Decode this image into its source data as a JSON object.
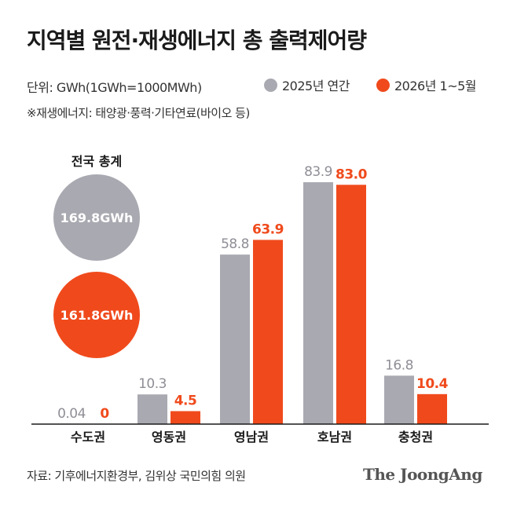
{
  "colors": {
    "gray": "#a9a9b1",
    "orange": "#f04a1c",
    "dark": "#1a1a1a"
  },
  "header": {
    "title": "지역별 원전·재생에너지 총 출력제어량",
    "unit": "단위: GWh(1GWh=1000MWh)",
    "note": "※재생에너지: 태양광·풍력·기타연료(바이오 등)"
  },
  "legend": {
    "gray": "2025년 연간",
    "orange": "2026년 1~5월"
  },
  "totals": {
    "title": "전국 총계",
    "gray": "169.8GWh",
    "orange": "161.8GWh"
  },
  "chart_data": {
    "type": "bar",
    "categories": [
      "수도권",
      "영동권",
      "영남권",
      "호남권",
      "충청권"
    ],
    "series": [
      {
        "name": "2025년 연간",
        "values": [
          0.04,
          10.3,
          58.8,
          83.9,
          16.8
        ],
        "labels": [
          "0.04",
          "10.3",
          "58.8",
          "83.9",
          "16.8"
        ],
        "color": "#a9a9b1"
      },
      {
        "name": "2026년 1~5월",
        "values": [
          0,
          4.5,
          63.9,
          83.0,
          10.4
        ],
        "labels": [
          "0",
          "4.5",
          "63.9",
          "83.0",
          "10.4"
        ],
        "color": "#f04a1c"
      }
    ],
    "ylim": [
      0,
      90
    ]
  },
  "footer": {
    "source": "자료: 기후에너지환경부, 김위상 국민의힘 의원",
    "brand": "The JoongAng"
  }
}
